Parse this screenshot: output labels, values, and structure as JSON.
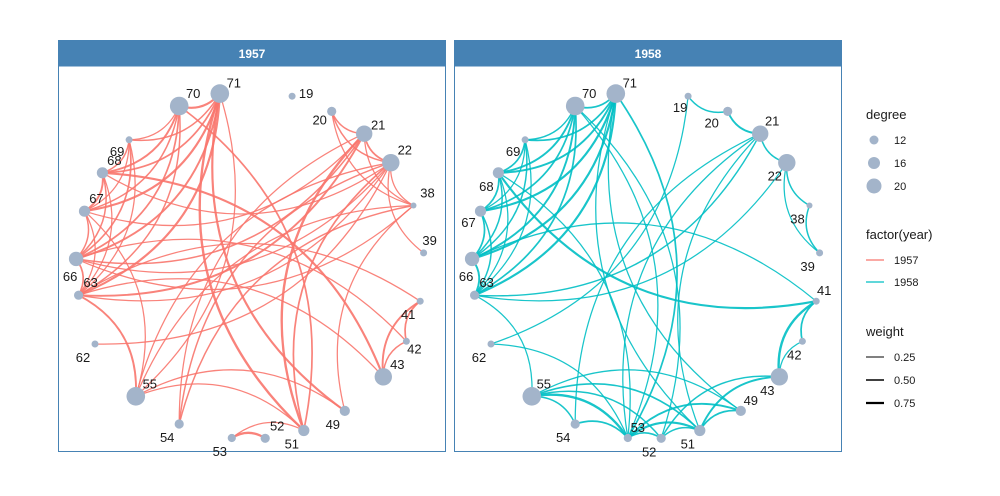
{
  "chart_data": {
    "type": "network",
    "colors": {
      "1957": "#F8766D",
      "1958": "#00BFC4",
      "node": "#A3B4CA",
      "strip": "#4682B4",
      "border": "#4682B4"
    },
    "facets": [
      {
        "label": "1957",
        "nodes": [
          {
            "id": "19",
            "degree": 10
          },
          {
            "id": "20",
            "degree": 12
          },
          {
            "id": "21",
            "degree": 19
          },
          {
            "id": "22",
            "degree": 20
          },
          {
            "id": "38",
            "degree": 9
          },
          {
            "id": "39",
            "degree": 10
          },
          {
            "id": "41",
            "degree": 10
          },
          {
            "id": "42",
            "degree": 10
          },
          {
            "id": "43",
            "degree": 20
          },
          {
            "id": "49",
            "degree": 13
          },
          {
            "id": "51",
            "degree": 14
          },
          {
            "id": "52",
            "degree": 12
          },
          {
            "id": "53",
            "degree": 11
          },
          {
            "id": "54",
            "degree": 12
          },
          {
            "id": "55",
            "degree": 21
          },
          {
            "id": "62",
            "degree": 10
          },
          {
            "id": "63",
            "degree": 12
          },
          {
            "id": "66",
            "degree": 17
          },
          {
            "id": "67",
            "degree": 14
          },
          {
            "id": "68",
            "degree": 14
          },
          {
            "id": "69",
            "degree": 10
          },
          {
            "id": "70",
            "degree": 21
          },
          {
            "id": "71",
            "degree": 21
          }
        ],
        "edges": [
          [
            "71",
            "70",
            0.7
          ],
          [
            "71",
            "69",
            0.4
          ],
          [
            "71",
            "68",
            0.5
          ],
          [
            "71",
            "67",
            0.7
          ],
          [
            "71",
            "66",
            0.6
          ],
          [
            "71",
            "63",
            0.7
          ],
          [
            "71",
            "55",
            0.3
          ],
          [
            "71",
            "51",
            0.8
          ],
          [
            "71",
            "49",
            0.7
          ],
          [
            "70",
            "69",
            0.3
          ],
          [
            "70",
            "68",
            0.6
          ],
          [
            "70",
            "67",
            0.4
          ],
          [
            "70",
            "66",
            0.5
          ],
          [
            "70",
            "63",
            0.4
          ],
          [
            "70",
            "51",
            0.5
          ],
          [
            "69",
            "68",
            0.4
          ],
          [
            "69",
            "67",
            0.3
          ],
          [
            "69",
            "66",
            0.5
          ],
          [
            "69",
            "63",
            0.3
          ],
          [
            "68",
            "67",
            0.6
          ],
          [
            "68",
            "66",
            0.4
          ],
          [
            "68",
            "63",
            0.3
          ],
          [
            "68",
            "43",
            0.7
          ],
          [
            "67",
            "66",
            0.4
          ],
          [
            "67",
            "63",
            0.3
          ],
          [
            "67",
            "55",
            0.3
          ],
          [
            "66",
            "63",
            0.5
          ],
          [
            "66",
            "42",
            0.3
          ],
          [
            "63",
            "55",
            0.6
          ],
          [
            "63",
            "41",
            0.3
          ],
          [
            "63",
            "22",
            0.3
          ],
          [
            "63",
            "21",
            0.6
          ],
          [
            "62",
            "22",
            0.3
          ],
          [
            "66",
            "22",
            0.3
          ],
          [
            "66",
            "21",
            0.4
          ],
          [
            "55",
            "38",
            0.3
          ],
          [
            "55",
            "22",
            0.3
          ],
          [
            "54",
            "38",
            0.4
          ],
          [
            "54",
            "22",
            0.4
          ],
          [
            "54",
            "21",
            0.3
          ],
          [
            "53",
            "51",
            0.3
          ],
          [
            "53",
            "52",
            0.8
          ],
          [
            "51",
            "21",
            0.8
          ],
          [
            "51",
            "22",
            0.5
          ],
          [
            "51",
            "55",
            0.3
          ],
          [
            "49",
            "55",
            0.3
          ],
          [
            "49",
            "38",
            0.3
          ],
          [
            "43",
            "41",
            0.6
          ],
          [
            "43",
            "42",
            0.4
          ],
          [
            "42",
            "41",
            0.5
          ],
          [
            "43",
            "63",
            0.3
          ],
          [
            "22",
            "21",
            0.5
          ],
          [
            "22",
            "20",
            0.4
          ],
          [
            "22",
            "38",
            0.3
          ],
          [
            "21",
            "20",
            0.4
          ],
          [
            "20",
            "38",
            0.3
          ],
          [
            "21",
            "38",
            0.3
          ],
          [
            "22",
            "39",
            0.3
          ],
          [
            "67",
            "21",
            0.3
          ],
          [
            "68",
            "22",
            0.3
          ],
          [
            "66",
            "38",
            0.3
          ]
        ]
      },
      {
        "label": "1958",
        "nodes": [
          {
            "id": "19",
            "degree": 10
          },
          {
            "id": "20",
            "degree": 12
          },
          {
            "id": "21",
            "degree": 19
          },
          {
            "id": "22",
            "degree": 20
          },
          {
            "id": "38",
            "degree": 9
          },
          {
            "id": "39",
            "degree": 10
          },
          {
            "id": "41",
            "degree": 10
          },
          {
            "id": "42",
            "degree": 10
          },
          {
            "id": "43",
            "degree": 20
          },
          {
            "id": "49",
            "degree": 13
          },
          {
            "id": "51",
            "degree": 14
          },
          {
            "id": "52",
            "degree": 12
          },
          {
            "id": "53",
            "degree": 11
          },
          {
            "id": "54",
            "degree": 12
          },
          {
            "id": "55",
            "degree": 21
          },
          {
            "id": "62",
            "degree": 10
          },
          {
            "id": "63",
            "degree": 12
          },
          {
            "id": "66",
            "degree": 17
          },
          {
            "id": "67",
            "degree": 14
          },
          {
            "id": "68",
            "degree": 14
          },
          {
            "id": "69",
            "degree": 10
          },
          {
            "id": "70",
            "degree": 21
          },
          {
            "id": "71",
            "degree": 21
          }
        ],
        "edges": [
          [
            "71",
            "70",
            0.5
          ],
          [
            "71",
            "69",
            0.5
          ],
          [
            "71",
            "68",
            0.6
          ],
          [
            "71",
            "67",
            0.7
          ],
          [
            "71",
            "66",
            0.7
          ],
          [
            "71",
            "63",
            0.7
          ],
          [
            "71",
            "53",
            0.5
          ],
          [
            "71",
            "51",
            0.3
          ],
          [
            "71",
            "49",
            0.3
          ],
          [
            "70",
            "69",
            0.4
          ],
          [
            "70",
            "68",
            0.6
          ],
          [
            "70",
            "67",
            0.5
          ],
          [
            "70",
            "66",
            0.6
          ],
          [
            "70",
            "63",
            0.5
          ],
          [
            "70",
            "53",
            0.3
          ],
          [
            "70",
            "52",
            0.3
          ],
          [
            "69",
            "68",
            0.5
          ],
          [
            "69",
            "67",
            0.3
          ],
          [
            "69",
            "66",
            0.4
          ],
          [
            "69",
            "63",
            0.3
          ],
          [
            "68",
            "67",
            0.5
          ],
          [
            "68",
            "66",
            0.4
          ],
          [
            "68",
            "63",
            0.3
          ],
          [
            "68",
            "41",
            0.7
          ],
          [
            "68",
            "53",
            0.3
          ],
          [
            "67",
            "66",
            0.5
          ],
          [
            "67",
            "63",
            0.4
          ],
          [
            "66",
            "63",
            0.6
          ],
          [
            "66",
            "41",
            0.3
          ],
          [
            "63",
            "21",
            0.4
          ],
          [
            "63",
            "22",
            0.3
          ],
          [
            "63",
            "55",
            0.3
          ],
          [
            "62",
            "53",
            0.3
          ],
          [
            "62",
            "19",
            0.3
          ],
          [
            "55",
            "53",
            0.8
          ],
          [
            "55",
            "52",
            0.4
          ],
          [
            "55",
            "51",
            0.5
          ],
          [
            "55",
            "49",
            0.3
          ],
          [
            "55",
            "54",
            0.4
          ],
          [
            "54",
            "53",
            0.5
          ],
          [
            "53",
            "52",
            0.5
          ],
          [
            "53",
            "51",
            0.7
          ],
          [
            "53",
            "49",
            0.6
          ],
          [
            "52",
            "51",
            0.4
          ],
          [
            "51",
            "49",
            0.5
          ],
          [
            "52",
            "43",
            0.4
          ],
          [
            "51",
            "43",
            0.6
          ],
          [
            "53",
            "21",
            0.3
          ],
          [
            "51",
            "21",
            0.3
          ],
          [
            "54",
            "21",
            0.3
          ],
          [
            "43",
            "41",
            0.8
          ],
          [
            "42",
            "41",
            0.5
          ],
          [
            "43",
            "42",
            0.3
          ],
          [
            "22",
            "21",
            0.4
          ],
          [
            "21",
            "20",
            0.6
          ],
          [
            "20",
            "19",
            0.4
          ],
          [
            "22",
            "38",
            0.4
          ],
          [
            "38",
            "39",
            0.4
          ],
          [
            "22",
            "39",
            0.3
          ]
        ]
      }
    ],
    "legend": {
      "degree": {
        "title": "degree",
        "breaks": [
          "12",
          "16",
          "20"
        ]
      },
      "color": {
        "title": "factor(year)",
        "entries": [
          "1957",
          "1958"
        ]
      },
      "weight": {
        "title": "weight",
        "breaks": [
          "0.25",
          "0.50",
          "0.75"
        ]
      }
    }
  }
}
